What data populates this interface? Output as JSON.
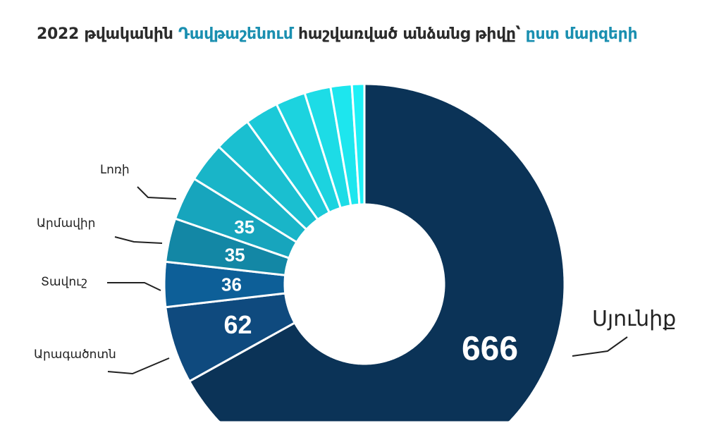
{
  "title": {
    "part1": "2022 թվականին ",
    "part2": "Դավթաշենում",
    "part3": " հաշվառված անձանց թիվը՝ ",
    "part4": "ըստ մարզերի"
  },
  "chart_data": {
    "type": "pie",
    "donut": true,
    "direction": "clockwise from top",
    "slices": [
      {
        "label": "Սյունիք",
        "value": 666,
        "color": "#0b3357",
        "show_value": true
      },
      {
        "label": "Արագածոտն",
        "value": 62,
        "color": "#0f4a7e",
        "show_value": true
      },
      {
        "label": "Տավուշ",
        "value": 36,
        "color": "#0d5f98",
        "show_value": true
      },
      {
        "label": "Արմավիր",
        "value": 35,
        "color": "#1387a5",
        "show_value": true
      },
      {
        "label": "Լոռի",
        "value": 35,
        "color": "#17a5bd",
        "show_value": true
      },
      {
        "label": "",
        "value": 32,
        "color": "#19b5c8",
        "show_value": false
      },
      {
        "label": "",
        "value": 30,
        "color": "#1abfd0",
        "show_value": false
      },
      {
        "label": "",
        "value": 27,
        "color": "#1bc9d8",
        "show_value": false
      },
      {
        "label": "",
        "value": 24,
        "color": "#1cd3df",
        "show_value": false
      },
      {
        "label": "",
        "value": 21,
        "color": "#1ddce6",
        "show_value": false
      },
      {
        "label": "",
        "value": 17,
        "color": "#1de6ee",
        "show_value": false
      },
      {
        "label": "",
        "value": 10,
        "color": "#1ef0f6",
        "show_value": false
      }
    ]
  }
}
